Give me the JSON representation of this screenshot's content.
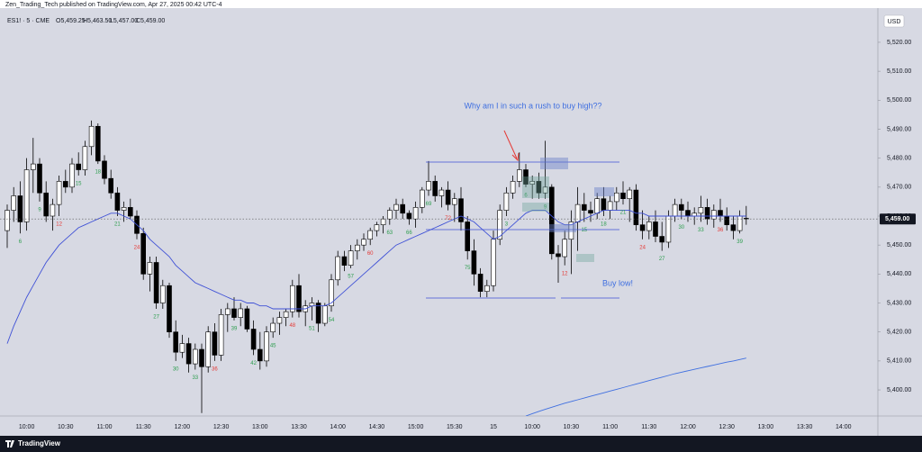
{
  "header": {
    "publisher": "Zen_Trading_Tech published on TradingView.com, Apr 27, 2025 00:42 UTC-4",
    "brand": "TradingView"
  },
  "chart_data": {
    "type": "candlestick",
    "symbol": "ES1! · 5 · CME",
    "legend_open": "O5,459.25",
    "legend_high": "H5,463.50",
    "legend_low": "L5,457.00",
    "legend_close": "C5,459.00",
    "currency": "USD",
    "last_price_label": "5,459.00",
    "annotations": [
      "Why am I in such a rush to buy high??",
      "Buy low!"
    ],
    "ylim": [
      5391,
      5529
    ],
    "yticks": [
      {
        "value": 5400,
        "label": "5,400.00"
      },
      {
        "value": 5410,
        "label": "5,410.00"
      },
      {
        "value": 5420,
        "label": "5,420.00"
      },
      {
        "value": 5430,
        "label": "5,430.00"
      },
      {
        "value": 5440,
        "label": "5,440.00"
      },
      {
        "value": 5450,
        "label": "5,450.00"
      },
      {
        "value": 5460,
        "label": "5,460.00"
      },
      {
        "value": 5470,
        "label": "5,470.00"
      },
      {
        "value": 5480,
        "label": "5,480.00"
      },
      {
        "value": 5490,
        "label": "5,490.00"
      },
      {
        "value": 5500,
        "label": "5,500.00"
      },
      {
        "value": 5510,
        "label": "5,510.00"
      },
      {
        "value": 5520,
        "label": "5,520.00"
      }
    ],
    "up_color": "#ffffff",
    "down_color": "#000000",
    "count_color": "#2e9e4f",
    "count_highlight_color": "#e53935",
    "categories": [
      null,
      null,
      null,
      "10:00",
      null,
      null,
      null,
      null,
      null,
      "10:30",
      null,
      null,
      null,
      null,
      null,
      "11:00",
      null,
      null,
      null,
      null,
      null,
      "11:30",
      null,
      null,
      null,
      null,
      null,
      "12:00",
      null,
      null,
      null,
      null,
      null,
      "12:30",
      null,
      null,
      null,
      null,
      null,
      "13:00",
      null,
      null,
      null,
      null,
      null,
      "13:30",
      null,
      null,
      null,
      null,
      null,
      "14:00",
      null,
      null,
      null,
      null,
      null,
      "14:30",
      null,
      null,
      null,
      null,
      null,
      "15:00",
      null,
      null,
      null,
      null,
      null,
      "15:30",
      null,
      null,
      null,
      null,
      null,
      "15",
      null,
      null,
      null,
      null,
      null,
      "10:00",
      null,
      null,
      null,
      null,
      null,
      "10:30",
      null,
      null,
      null,
      null,
      null,
      "11:00",
      null,
      null,
      null,
      null,
      null,
      "11:30",
      null,
      null,
      null,
      null,
      null,
      "12:00",
      null,
      null,
      null,
      null,
      null,
      "12:30",
      null,
      null,
      null,
      null,
      null,
      "13:00",
      null,
      null,
      null,
      null,
      null,
      "13:30",
      null,
      null,
      null,
      null,
      null,
      "14:00",
      null,
      null,
      null
    ],
    "ohlc": [
      [
        5455,
        5464,
        5449,
        5462
      ],
      [
        5462,
        5470,
        5458,
        5467
      ],
      [
        5467,
        5472,
        5454,
        5458
      ],
      [
        5458,
        5480,
        5455,
        5476
      ],
      [
        5476,
        5487,
        5468,
        5478
      ],
      [
        5478,
        5480,
        5465,
        5468
      ],
      [
        5468,
        5472,
        5458,
        5460
      ],
      [
        5460,
        5466,
        5455,
        5464
      ],
      [
        5464,
        5474,
        5460,
        5472
      ],
      [
        5472,
        5476,
        5468,
        5470
      ],
      [
        5470,
        5480,
        5468,
        5478
      ],
      [
        5478,
        5482,
        5474,
        5476
      ],
      [
        5476,
        5486,
        5474,
        5484
      ],
      [
        5484,
        5493,
        5481,
        5491
      ],
      [
        5491,
        5492,
        5478,
        5479
      ],
      [
        5479,
        5481,
        5471,
        5473
      ],
      [
        5473,
        5476,
        5466,
        5468
      ],
      [
        5468,
        5470,
        5460,
        5462
      ],
      [
        5462,
        5465,
        5458,
        5463
      ],
      [
        5463,
        5466,
        5459,
        5460
      ],
      [
        5460,
        5462,
        5452,
        5454
      ],
      [
        5454,
        5456,
        5438,
        5440
      ],
      [
        5440,
        5446,
        5434,
        5444
      ],
      [
        5444,
        5446,
        5428,
        5430
      ],
      [
        5430,
        5438,
        5428,
        5436
      ],
      [
        5436,
        5437,
        5418,
        5420
      ],
      [
        5420,
        5424,
        5410,
        5413
      ],
      [
        5413,
        5419,
        5411,
        5416
      ],
      [
        5416,
        5418,
        5406,
        5409
      ],
      [
        5409,
        5416,
        5407,
        5414
      ],
      [
        5414,
        5416,
        5392,
        5408
      ],
      [
        5408,
        5422,
        5406,
        5420
      ],
      [
        5420,
        5423,
        5410,
        5412
      ],
      [
        5412,
        5428,
        5410,
        5426
      ],
      [
        5426,
        5430,
        5420,
        5428
      ],
      [
        5428,
        5432,
        5424,
        5425
      ],
      [
        5425,
        5430,
        5422,
        5428
      ],
      [
        5428,
        5429,
        5420,
        5421
      ],
      [
        5421,
        5424,
        5412,
        5414
      ],
      [
        5414,
        5420,
        5407,
        5410
      ],
      [
        5410,
        5422,
        5408,
        5420
      ],
      [
        5420,
        5425,
        5418,
        5423
      ],
      [
        5423,
        5427,
        5419,
        5425
      ],
      [
        5425,
        5428,
        5422,
        5427
      ],
      [
        5427,
        5438,
        5425,
        5436
      ],
      [
        5436,
        5440,
        5425,
        5427
      ],
      [
        5427,
        5431,
        5422,
        5429
      ],
      [
        5429,
        5432,
        5424,
        5430
      ],
      [
        5430,
        5431,
        5420,
        5423
      ],
      [
        5423,
        5430,
        5422,
        5429
      ],
      [
        5429,
        5440,
        5427,
        5438
      ],
      [
        5438,
        5448,
        5436,
        5446
      ],
      [
        5446,
        5448,
        5441,
        5443
      ],
      [
        5443,
        5450,
        5442,
        5448
      ],
      [
        5448,
        5452,
        5445,
        5450
      ],
      [
        5450,
        5454,
        5448,
        5452
      ],
      [
        5452,
        5456,
        5450,
        5455
      ],
      [
        5455,
        5458,
        5453,
        5457
      ],
      [
        5457,
        5460,
        5454,
        5459
      ],
      [
        5459,
        5463,
        5457,
        5462
      ],
      [
        5462,
        5466,
        5459,
        5464
      ],
      [
        5464,
        5466,
        5459,
        5461
      ],
      [
        5461,
        5462,
        5457,
        5459
      ],
      [
        5459,
        5465,
        5456,
        5463
      ],
      [
        5463,
        5470,
        5461,
        5469
      ],
      [
        5469,
        5479,
        5467,
        5472
      ],
      [
        5472,
        5474,
        5465,
        5467
      ],
      [
        5467,
        5470,
        5463,
        5469
      ],
      [
        5469,
        5472,
        5462,
        5464
      ],
      [
        5464,
        5468,
        5458,
        5466
      ],
      [
        5466,
        5470,
        5455,
        5458
      ],
      [
        5458,
        5460,
        5445,
        5448
      ],
      [
        5448,
        5452,
        5436,
        5440
      ],
      [
        5440,
        5442,
        5432,
        5434
      ],
      [
        5434,
        5438,
        5432,
        5436
      ],
      [
        5436,
        5455,
        5434,
        5452
      ],
      [
        5452,
        5464,
        5450,
        5462
      ],
      [
        5462,
        5470,
        5460,
        5468
      ],
      [
        5468,
        5474,
        5466,
        5472
      ],
      [
        5472,
        5482,
        5470,
        5476
      ],
      [
        5476,
        5478,
        5470,
        5471
      ],
      [
        5471,
        5474,
        5466,
        5472
      ],
      [
        5472,
        5475,
        5466,
        5468
      ],
      [
        5468,
        5486,
        5466,
        5470
      ],
      [
        5470,
        5471,
        5445,
        5447
      ],
      [
        5447,
        5450,
        5437,
        5446
      ],
      [
        5446,
        5455,
        5443,
        5452
      ],
      [
        5452,
        5462,
        5440,
        5458
      ],
      [
        5458,
        5470,
        5448,
        5464
      ],
      [
        5464,
        5468,
        5458,
        5462
      ],
      [
        5462,
        5465,
        5458,
        5461
      ],
      [
        5461,
        5468,
        5459,
        5466
      ],
      [
        5466,
        5470,
        5460,
        5462
      ],
      [
        5462,
        5467,
        5459,
        5465
      ],
      [
        5465,
        5470,
        5462,
        5468
      ],
      [
        5468,
        5472,
        5464,
        5466
      ],
      [
        5466,
        5470,
        5458,
        5469
      ],
      [
        5469,
        5471,
        5455,
        5457
      ],
      [
        5457,
        5462,
        5452,
        5455
      ],
      [
        5455,
        5460,
        5452,
        5458
      ],
      [
        5458,
        5462,
        5451,
        5453
      ],
      [
        5453,
        5458,
        5448,
        5451
      ],
      [
        5451,
        5462,
        5449,
        5460
      ],
      [
        5460,
        5466,
        5458,
        5464
      ],
      [
        5464,
        5466,
        5459,
        5462
      ],
      [
        5462,
        5465,
        5458,
        5460
      ],
      [
        5460,
        5463,
        5457,
        5461
      ],
      [
        5461,
        5467,
        5458,
        5463
      ],
      [
        5463,
        5466,
        5457,
        5459
      ],
      [
        5459,
        5464,
        5456,
        5462
      ],
      [
        5462,
        5466,
        5458,
        5460
      ],
      [
        5460,
        5463,
        5455,
        5457
      ],
      [
        5457,
        5460,
        5452,
        5455
      ],
      [
        5455,
        5462,
        5454,
        5460
      ],
      [
        5459.25,
        5463.5,
        5457,
        5459
      ],
      null,
      null,
      null,
      null,
      null,
      null,
      null,
      null,
      null,
      null,
      null,
      null,
      null,
      null,
      null,
      null,
      null,
      null
    ],
    "series": [
      {
        "color": "#3f51d6",
        "values": [
          5416,
          5422,
          5427,
          5432,
          5436,
          5440,
          5444,
          5447,
          5450,
          5452,
          5454,
          5456,
          5457,
          5458,
          5459,
          5460,
          5461,
          5461,
          5460,
          5459,
          5457,
          5455,
          5452,
          5450,
          5448,
          5446,
          5443,
          5441,
          5439,
          5437,
          5436,
          5435,
          5434,
          5433,
          5432,
          5431,
          5431,
          5430,
          5430,
          5429,
          5429,
          5428,
          5428,
          5428,
          5428,
          5428,
          5428,
          5429,
          5429,
          5429,
          5430,
          5432,
          5434,
          5436,
          5438,
          5440,
          5442,
          5444,
          5446,
          5448,
          5450,
          5451,
          5452,
          5453,
          5454,
          5455,
          5456,
          5457,
          5458,
          5459,
          5460,
          5459,
          5458,
          5456,
          5454,
          5452,
          5453,
          5455,
          5457,
          5459,
          5461,
          5462,
          5462,
          5462,
          5460,
          5458,
          5457,
          5457,
          5458,
          5459,
          5460,
          5461,
          5462,
          5462,
          5462,
          5462,
          5462,
          5461,
          5461,
          5460,
          5460,
          5460,
          5460,
          5460,
          5460,
          5460,
          5460,
          5460,
          5460,
          5460,
          5460,
          5460,
          5460,
          5460,
          5460,
          null,
          null,
          null,
          null,
          null,
          null,
          null,
          null,
          null,
          null,
          null,
          null,
          null,
          null,
          null,
          null,
          null,
          null
        ]
      },
      {
        "color": "#3f6fe0",
        "values": [
          null,
          null,
          null,
          null,
          null,
          null,
          null,
          null,
          null,
          null,
          null,
          null,
          null,
          null,
          null,
          null,
          null,
          null,
          null,
          null,
          null,
          null,
          null,
          null,
          null,
          null,
          null,
          null,
          null,
          null,
          null,
          null,
          null,
          null,
          null,
          null,
          null,
          null,
          null,
          null,
          null,
          null,
          null,
          null,
          null,
          null,
          null,
          null,
          null,
          null,
          null,
          null,
          null,
          null,
          null,
          null,
          null,
          null,
          null,
          null,
          null,
          null,
          null,
          null,
          null,
          null,
          null,
          null,
          null,
          null,
          null,
          null,
          null,
          null,
          null,
          null,
          null,
          null,
          null,
          null,
          5391,
          5391.8,
          5392.6,
          5393.3,
          5394,
          5394.7,
          5395.4,
          5396,
          5396.6,
          5397.2,
          5397.8,
          5398.4,
          5399,
          5399.6,
          5400.2,
          5400.8,
          5401.4,
          5402,
          5402.6,
          5403.2,
          5403.8,
          5404.4,
          5405,
          5405.6,
          5406.1,
          5406.6,
          5407.1,
          5407.6,
          5408.1,
          5408.6,
          5409.1,
          5409.6,
          5410,
          5410.5,
          5411,
          null,
          null,
          null,
          null,
          null,
          null,
          null,
          null,
          null,
          null,
          null,
          null,
          null,
          null,
          null,
          null,
          null,
          null
        ]
      }
    ],
    "bar_counts": [
      null,
      null,
      6,
      null,
      null,
      9,
      null,
      null,
      12,
      null,
      null,
      15,
      null,
      null,
      18,
      null,
      null,
      21,
      null,
      null,
      24,
      null,
      null,
      27,
      null,
      null,
      30,
      null,
      null,
      33,
      null,
      null,
      36,
      null,
      null,
      39,
      null,
      null,
      42,
      null,
      null,
      45,
      null,
      null,
      48,
      null,
      null,
      51,
      null,
      null,
      54,
      null,
      null,
      57,
      null,
      null,
      60,
      null,
      null,
      63,
      null,
      null,
      66,
      null,
      null,
      69,
      null,
      null,
      72,
      null,
      null,
      75,
      null,
      null,
      null,
      null,
      null,
      3,
      null,
      null,
      6,
      null,
      null,
      9,
      null,
      null,
      12,
      null,
      null,
      15,
      null,
      null,
      18,
      null,
      null,
      21,
      null,
      null,
      24,
      null,
      null,
      27,
      null,
      null,
      30,
      null,
      null,
      33,
      null,
      null,
      36,
      null,
      null,
      39,
      null,
      null,
      null,
      null,
      null,
      null,
      null,
      null,
      null,
      null,
      null,
      null,
      null,
      null,
      null,
      null,
      null,
      null,
      null
    ]
  }
}
